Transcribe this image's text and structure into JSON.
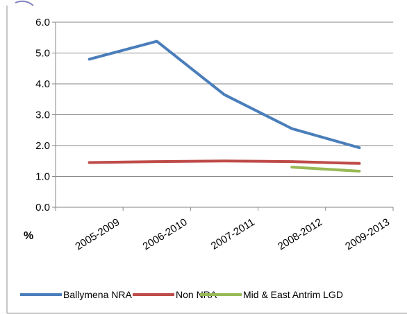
{
  "chart_data": {
    "type": "line",
    "ylabel": "%",
    "ylim": [
      0,
      6
    ],
    "yticks": [
      "0.0",
      "1.0",
      "2.0",
      "3.0",
      "4.0",
      "5.0",
      "6.0"
    ],
    "categories": [
      "2005-2009",
      "2006-2010",
      "2007-2011",
      "2008-2012",
      "2009-2013"
    ],
    "grid": true,
    "legend_position": "bottom",
    "series": [
      {
        "name": "Ballymena NRA",
        "color": "#4a7ebb",
        "values": [
          4.8,
          5.38,
          3.65,
          2.55,
          1.93
        ]
      },
      {
        "name": "Non NRA",
        "color": "#be4b48",
        "values": [
          1.45,
          1.48,
          1.5,
          1.48,
          1.42
        ]
      },
      {
        "name": "Mid & East Antrim LGD",
        "color": "#98b954",
        "values": [
          null,
          null,
          null,
          1.3,
          1.17
        ]
      }
    ]
  }
}
